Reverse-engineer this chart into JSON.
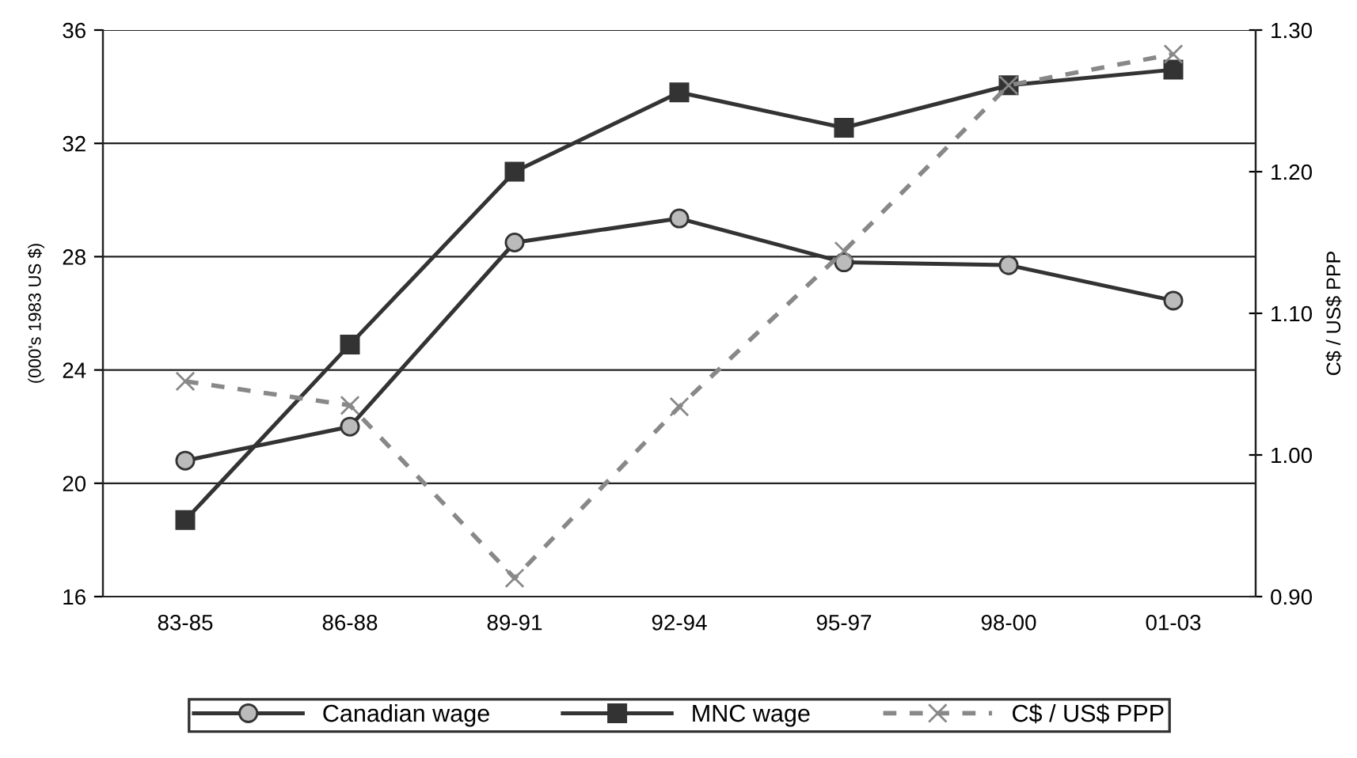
{
  "chart_data": {
    "type": "line",
    "ylabel": "(000's 1983 US $)",
    "y2label": "C$ / US$ PPP",
    "categories": [
      "83-85",
      "86-88",
      "89-91",
      "92-94",
      "95-97",
      "98-00",
      "01-03"
    ],
    "series": [
      {
        "name": "Canadian wage",
        "color": "#333333",
        "marker": "circle",
        "line_style": "solid",
        "values": [
          20.8,
          22.0,
          28.5,
          29.35,
          27.8,
          27.7,
          26.45
        ]
      },
      {
        "name": "MNC wage",
        "color": "#333333",
        "marker": "square",
        "line_style": "solid",
        "values": [
          18.7,
          24.9,
          31.0,
          33.8,
          32.55,
          34.05,
          34.6
        ]
      },
      {
        "name": "C$ / US$ PPP",
        "color": "#888888",
        "marker": "cross",
        "line_style": "dashed",
        "axis": "y2",
        "values": [
          1.052,
          1.035,
          0.913,
          1.034,
          1.144,
          1.261,
          1.283
        ]
      }
    ],
    "ylim": [
      16,
      36
    ],
    "yticks": [
      16,
      20,
      24,
      28,
      32,
      36
    ],
    "y2lim": [
      0.9,
      1.3
    ],
    "y2ticks": [
      {
        "value": 0.9,
        "label": "0.90"
      },
      {
        "value": 1.0,
        "label": "1.00"
      },
      {
        "value": 1.1,
        "label": "1.10"
      },
      {
        "value": 1.2,
        "label": "1.20"
      },
      {
        "value": 1.3,
        "label": "1.30"
      }
    ],
    "grid": "y",
    "legend": "bottom"
  }
}
